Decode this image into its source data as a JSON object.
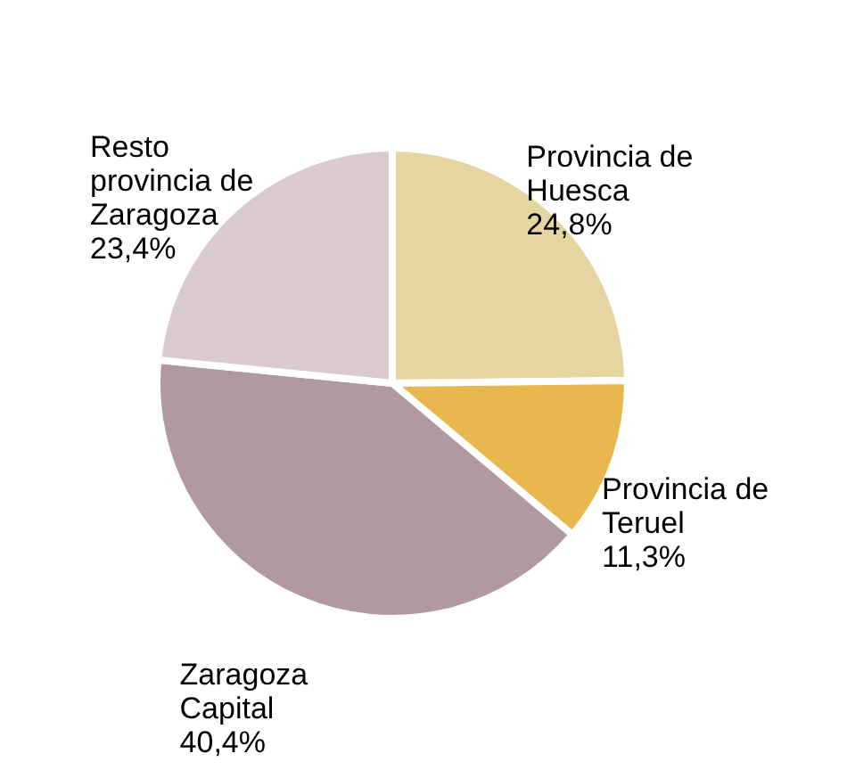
{
  "chart_data": {
    "type": "pie",
    "categories": [
      "Provincia de\nHuesca",
      "Provincia de\nTeruel",
      "Zaragoza\nCapital",
      "Resto\nprovincia de\nZaragoza"
    ],
    "values": [
      24.8,
      11.3,
      40.4,
      23.4
    ],
    "value_labels": [
      "24,8%",
      "11,3%",
      "40,4%",
      "23,4%"
    ],
    "colors": [
      "#e5d5a0",
      "#e8b84f",
      "#b09aa0",
      "#d9cbcf"
    ],
    "legend": false
  }
}
